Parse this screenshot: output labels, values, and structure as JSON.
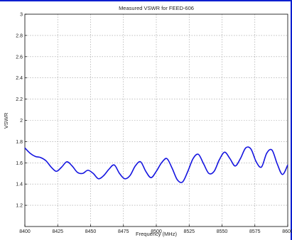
{
  "chart_data": {
    "type": "line",
    "title": "Measured VSWR for FEED-606",
    "xlabel": "Frequency (MHz)",
    "ylabel": "VSWR",
    "xlim": [
      8400,
      8600
    ],
    "ylim": [
      1,
      3
    ],
    "x_ticks": [
      8400,
      8425,
      8450,
      8475,
      8500,
      8525,
      8550,
      8575,
      8600
    ],
    "x_tick_labels": [
      "8400",
      "8425",
      "8450",
      "8475",
      "8500",
      "8525",
      "8550",
      "8575",
      "8600"
    ],
    "y_ticks": [
      1.2,
      1.4,
      1.6,
      1.8,
      2.0,
      2.2,
      2.4,
      2.6,
      2.8,
      3.0
    ],
    "y_tick_labels": [
      "1.2",
      "1.4",
      "1.6",
      "1.8",
      "2",
      "2.2",
      "2.4",
      "2.6",
      "2.8",
      "3"
    ],
    "grid": true,
    "series": [
      {
        "color": "#1515e0",
        "x": [
          8400,
          8404,
          8408,
          8412,
          8416,
          8420,
          8424,
          8428,
          8432,
          8436,
          8440,
          8444,
          8448,
          8452,
          8456,
          8460,
          8464,
          8468,
          8472,
          8476,
          8480,
          8484,
          8488,
          8492,
          8496,
          8500,
          8504,
          8508,
          8512,
          8516,
          8520,
          8524,
          8528,
          8532,
          8536,
          8540,
          8544,
          8548,
          8552,
          8556,
          8560,
          8564,
          8568,
          8572,
          8576,
          8580,
          8584,
          8588,
          8592,
          8596,
          8600
        ],
        "y": [
          1.74,
          1.69,
          1.66,
          1.65,
          1.62,
          1.56,
          1.52,
          1.56,
          1.61,
          1.57,
          1.51,
          1.5,
          1.53,
          1.5,
          1.45,
          1.48,
          1.54,
          1.58,
          1.5,
          1.45,
          1.48,
          1.57,
          1.61,
          1.52,
          1.46,
          1.52,
          1.6,
          1.64,
          1.55,
          1.44,
          1.42,
          1.52,
          1.64,
          1.68,
          1.59,
          1.5,
          1.52,
          1.63,
          1.7,
          1.64,
          1.57,
          1.64,
          1.74,
          1.73,
          1.61,
          1.56,
          1.69,
          1.72,
          1.59,
          1.49,
          1.58
        ]
      }
    ]
  }
}
